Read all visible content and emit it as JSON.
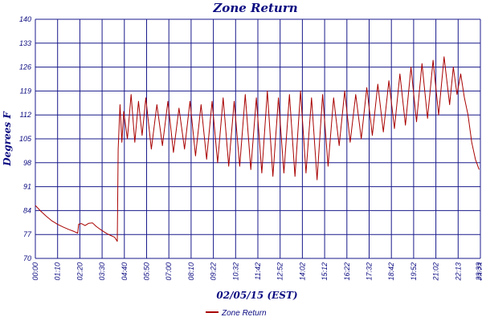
{
  "chart_data": {
    "type": "line",
    "title": "Zone Return",
    "xlabel": "02/05/15 (EST)",
    "ylabel": "Degrees F",
    "ylim": [
      70,
      140
    ],
    "yticks": [
      70,
      77,
      84,
      91,
      98,
      105,
      112,
      119,
      126,
      133,
      140
    ],
    "xlim_hours": [
      0,
      24.17
    ],
    "xticks": [
      "00:00",
      "01:10",
      "02:20",
      "03:30",
      "04:40",
      "05:50",
      "07:00",
      "08:10",
      "09:22",
      "10:32",
      "11:42",
      "12:52",
      "14:02",
      "15:12",
      "16:22",
      "17:32",
      "18:42",
      "19:52",
      "21:02",
      "22:13",
      "23:23",
      "23:33"
    ],
    "grid": true,
    "legend_position": "bottom-left",
    "series": [
      {
        "name": "Zone Return",
        "color": "#a80000",
        "time_hours": [
          0.0,
          0.3,
          0.6,
          0.9,
          1.2,
          1.5,
          1.8,
          2.1,
          2.3,
          2.35,
          2.5,
          2.7,
          2.9,
          3.1,
          3.3,
          3.5,
          3.7,
          3.9,
          4.1,
          4.3,
          4.45,
          4.5,
          4.6,
          4.7,
          4.8,
          5.0,
          5.2,
          5.4,
          5.6,
          5.8,
          6.0,
          6.3,
          6.6,
          6.9,
          7.2,
          7.5,
          7.8,
          8.1,
          8.4,
          8.7,
          9.0,
          9.3,
          9.6,
          9.9,
          10.2,
          10.5,
          10.8,
          11.1,
          11.4,
          11.7,
          12.0,
          12.3,
          12.6,
          12.9,
          13.2,
          13.5,
          13.8,
          14.1,
          14.4,
          14.7,
          15.0,
          15.3,
          15.6,
          15.9,
          16.2,
          16.5,
          16.8,
          17.1,
          17.4,
          17.7,
          18.0,
          18.3,
          18.6,
          18.9,
          19.2,
          19.5,
          19.8,
          20.1,
          20.4,
          20.7,
          21.0,
          21.3,
          21.6,
          21.9,
          22.2,
          22.5,
          22.7,
          22.9,
          23.1,
          23.3,
          23.5,
          23.7,
          23.9,
          24.1
        ],
        "degrees_f": [
          85.5,
          83.8,
          82.3,
          81.0,
          80.0,
          79.2,
          78.5,
          77.9,
          77.4,
          80.0,
          80.2,
          79.6,
          80.3,
          80.4,
          79.4,
          78.6,
          77.9,
          77.2,
          76.7,
          76.2,
          75.0,
          102.0,
          115.0,
          104.0,
          113.0,
          105.0,
          118.0,
          104.0,
          116.0,
          106.0,
          117.0,
          102.0,
          115.0,
          103.0,
          116.0,
          101.0,
          114.0,
          102.0,
          116.0,
          100.0,
          115.0,
          99.0,
          116.0,
          98.0,
          117.0,
          97.0,
          116.0,
          97.0,
          118.0,
          96.0,
          117.0,
          95.0,
          119.0,
          94.0,
          117.0,
          95.0,
          118.0,
          94.0,
          119.0,
          95.0,
          117.0,
          93.0,
          118.0,
          97.0,
          117.0,
          103.0,
          119.0,
          104.0,
          118.0,
          105.0,
          120.0,
          106.0,
          121.0,
          107.0,
          122.0,
          108.0,
          124.0,
          109.0,
          126.0,
          110.0,
          127.0,
          111.0,
          128.0,
          112.0,
          129.0,
          115.0,
          126.0,
          118.0,
          124.0,
          117.0,
          112.0,
          104.0,
          99.0,
          96.0
        ]
      }
    ]
  }
}
